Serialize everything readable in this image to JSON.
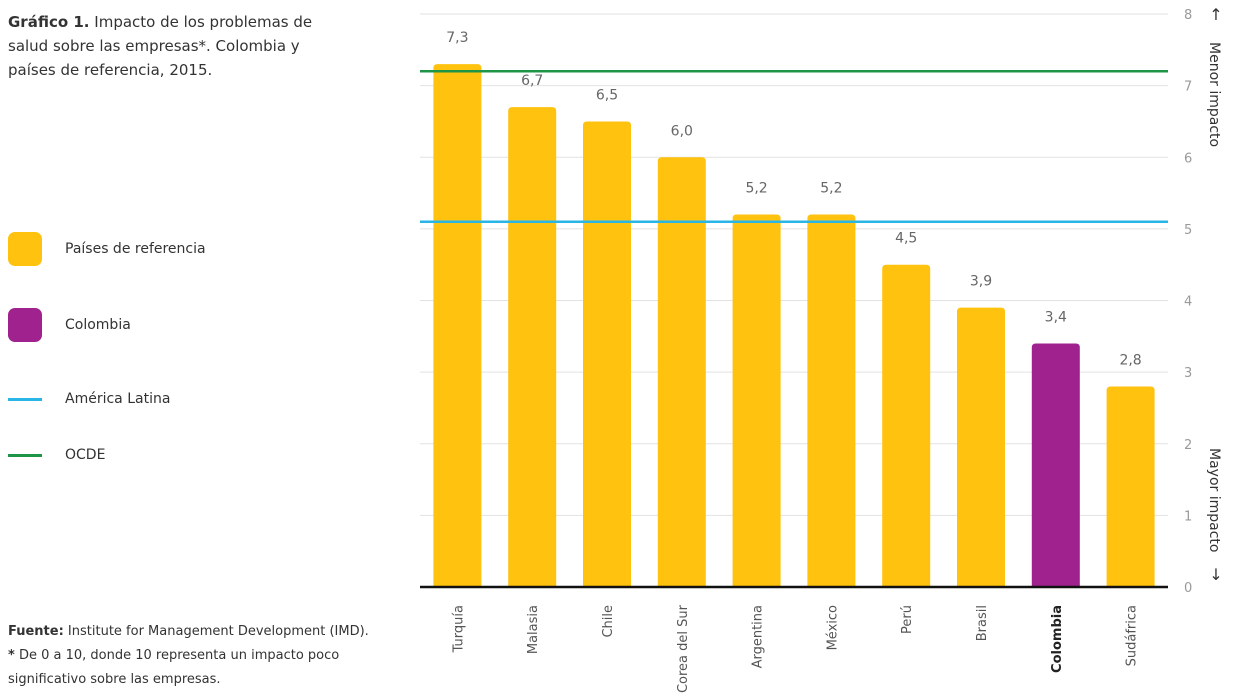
{
  "title": {
    "bold": "Gráfico 1.",
    "text": " Impacto de los problemas de salud sobre las empresas*. Colombia y países de referencia, 2015."
  },
  "legend": {
    "items": [
      {
        "label": "Países de referencia",
        "kind": "swatch",
        "color": "#FFC20E"
      },
      {
        "label": "Colombia",
        "kind": "swatch",
        "color": "#A0228E"
      },
      {
        "label": "América Latina",
        "kind": "line",
        "color": "#29B6E6"
      },
      {
        "label": "OCDE",
        "kind": "line",
        "color": "#1E9447"
      }
    ]
  },
  "footer": {
    "source_bold": "Fuente:",
    "source_text": " Institute for Management Development (IMD).",
    "note_bold": "*",
    "note_text": " De 0 a 10, donde 10 representa un impacto poco significativo sobre las empresas."
  },
  "chart_data": {
    "type": "bar",
    "categories": [
      "Turquía",
      "Malasia",
      "Chile",
      "Corea del Sur",
      "Argentina",
      "México",
      "Perú",
      "Brasil",
      "Colombia",
      "Sudáfrica"
    ],
    "values": [
      7.3,
      6.7,
      6.5,
      6.0,
      5.2,
      5.2,
      4.5,
      3.9,
      3.4,
      2.8
    ],
    "value_labels": [
      "7,3",
      "6,7",
      "6,5",
      "6,0",
      "5,2",
      "5,2",
      "4,5",
      "3,9",
      "3,4",
      "2,8"
    ],
    "highlight_category": "Colombia",
    "bar_color": "#FFC20E",
    "highlight_color": "#A0228E",
    "reference_lines": [
      {
        "name": "OCDE",
        "value": 7.2,
        "color": "#1E9447"
      },
      {
        "name": "América Latina",
        "value": 5.1,
        "color": "#29B6E6"
      }
    ],
    "ylim": [
      0,
      8
    ],
    "yticks": [
      0,
      1,
      2,
      3,
      4,
      5,
      6,
      7,
      8
    ],
    "y_axis_position": "right",
    "y_top_note": "Menor impacto",
    "y_bottom_note": "Mayor impacto",
    "grid": true
  }
}
